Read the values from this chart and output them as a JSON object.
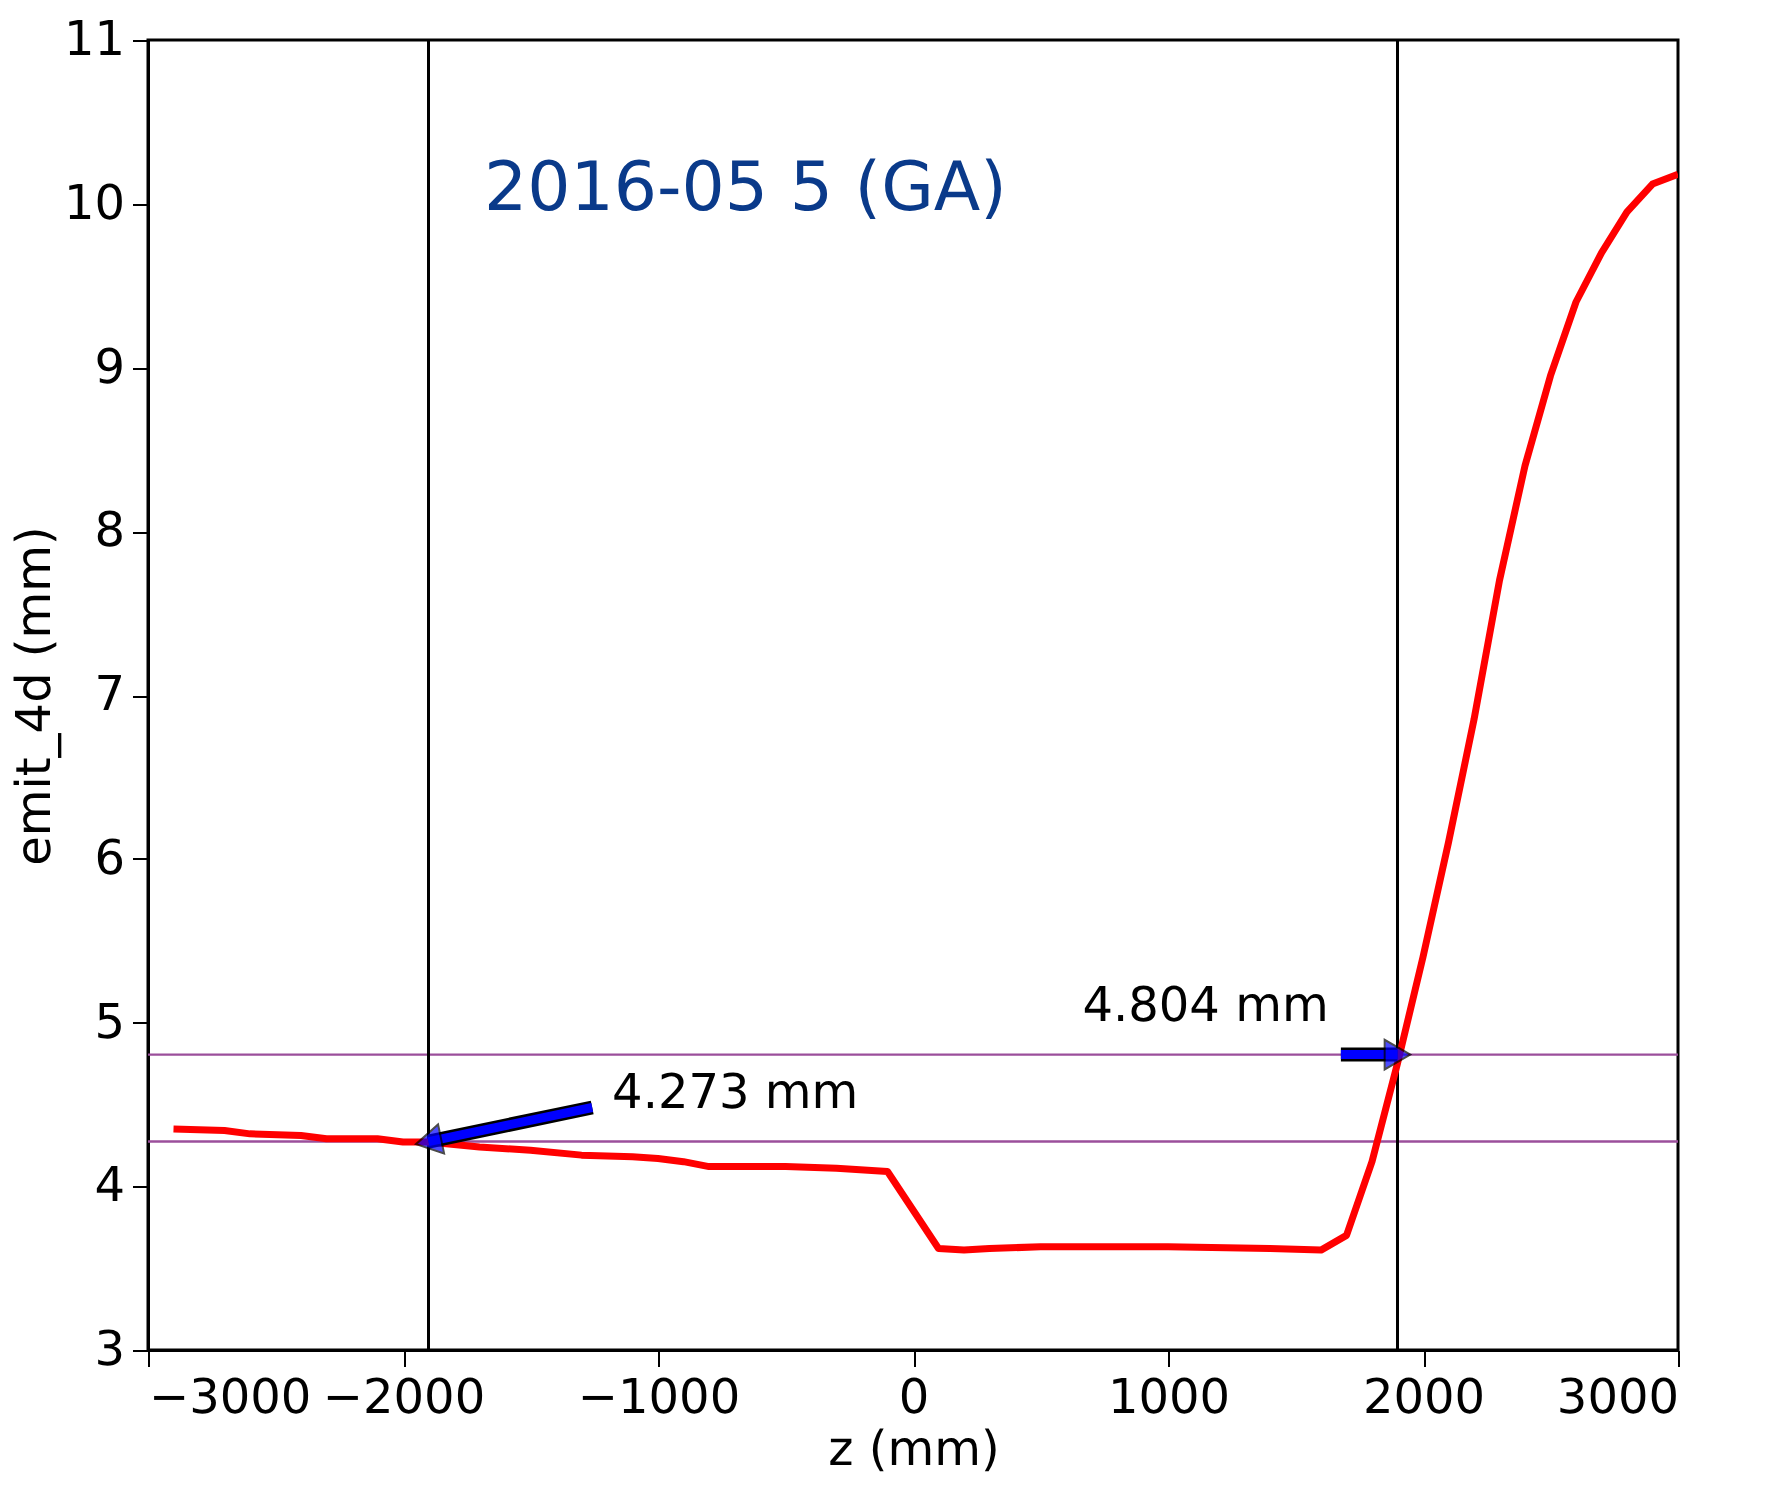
{
  "chart_data": {
    "type": "line",
    "title": "2016-05 5 (GA)",
    "xlabel": "z (mm)",
    "ylabel": "emit_4d (mm)",
    "x": [
      -2900,
      -2700,
      -2600,
      -2400,
      -2300,
      -2100,
      -2000,
      -1900,
      -1700,
      -1500,
      -1300,
      -1100,
      -1000,
      -900,
      -800,
      -600,
      -500,
      -300,
      -100,
      100,
      200,
      300,
      500,
      1000,
      1400,
      1600,
      1700,
      1800,
      1900,
      2000,
      2100,
      2200,
      2300,
      2400,
      2500,
      2600,
      2700,
      2800,
      2900,
      3000
    ],
    "series": [
      {
        "color": "#ff0000",
        "values": [
          4.35,
          4.34,
          4.32,
          4.31,
          4.29,
          4.29,
          4.27,
          4.27,
          4.24,
          4.22,
          4.19,
          4.18,
          4.17,
          4.15,
          4.12,
          4.12,
          4.12,
          4.11,
          4.09,
          3.62,
          3.61,
          3.62,
          3.63,
          3.63,
          3.62,
          3.61,
          3.7,
          4.15,
          4.75,
          5.4,
          6.1,
          6.85,
          7.7,
          8.4,
          8.95,
          9.4,
          9.7,
          9.95,
          10.12,
          10.18
        ]
      }
    ],
    "xlim": [
      -3000,
      3000
    ],
    "ylim": [
      3,
      11
    ],
    "xticks": [
      -3000,
      -2000,
      -1000,
      0,
      1000,
      2000,
      3000
    ],
    "yticks": [
      3,
      4,
      5,
      6,
      7,
      8,
      9,
      10,
      11
    ],
    "ref_lines": [
      {
        "axis": "x",
        "value": -1900,
        "color": "#000000"
      },
      {
        "axis": "x",
        "value": 1900,
        "color": "#000000"
      },
      {
        "axis": "y",
        "value": 4.804,
        "color": "#9b4f9b"
      },
      {
        "axis": "y",
        "value": 4.273,
        "color": "#9b4f9b"
      }
    ],
    "annotations": [
      {
        "text": "4.273 mm",
        "x": -1900,
        "y": 4.273
      },
      {
        "text": "4.804 mm",
        "x": 1900,
        "y": 4.804
      }
    ],
    "grid": false,
    "line_style": "solid",
    "marker": "none"
  }
}
